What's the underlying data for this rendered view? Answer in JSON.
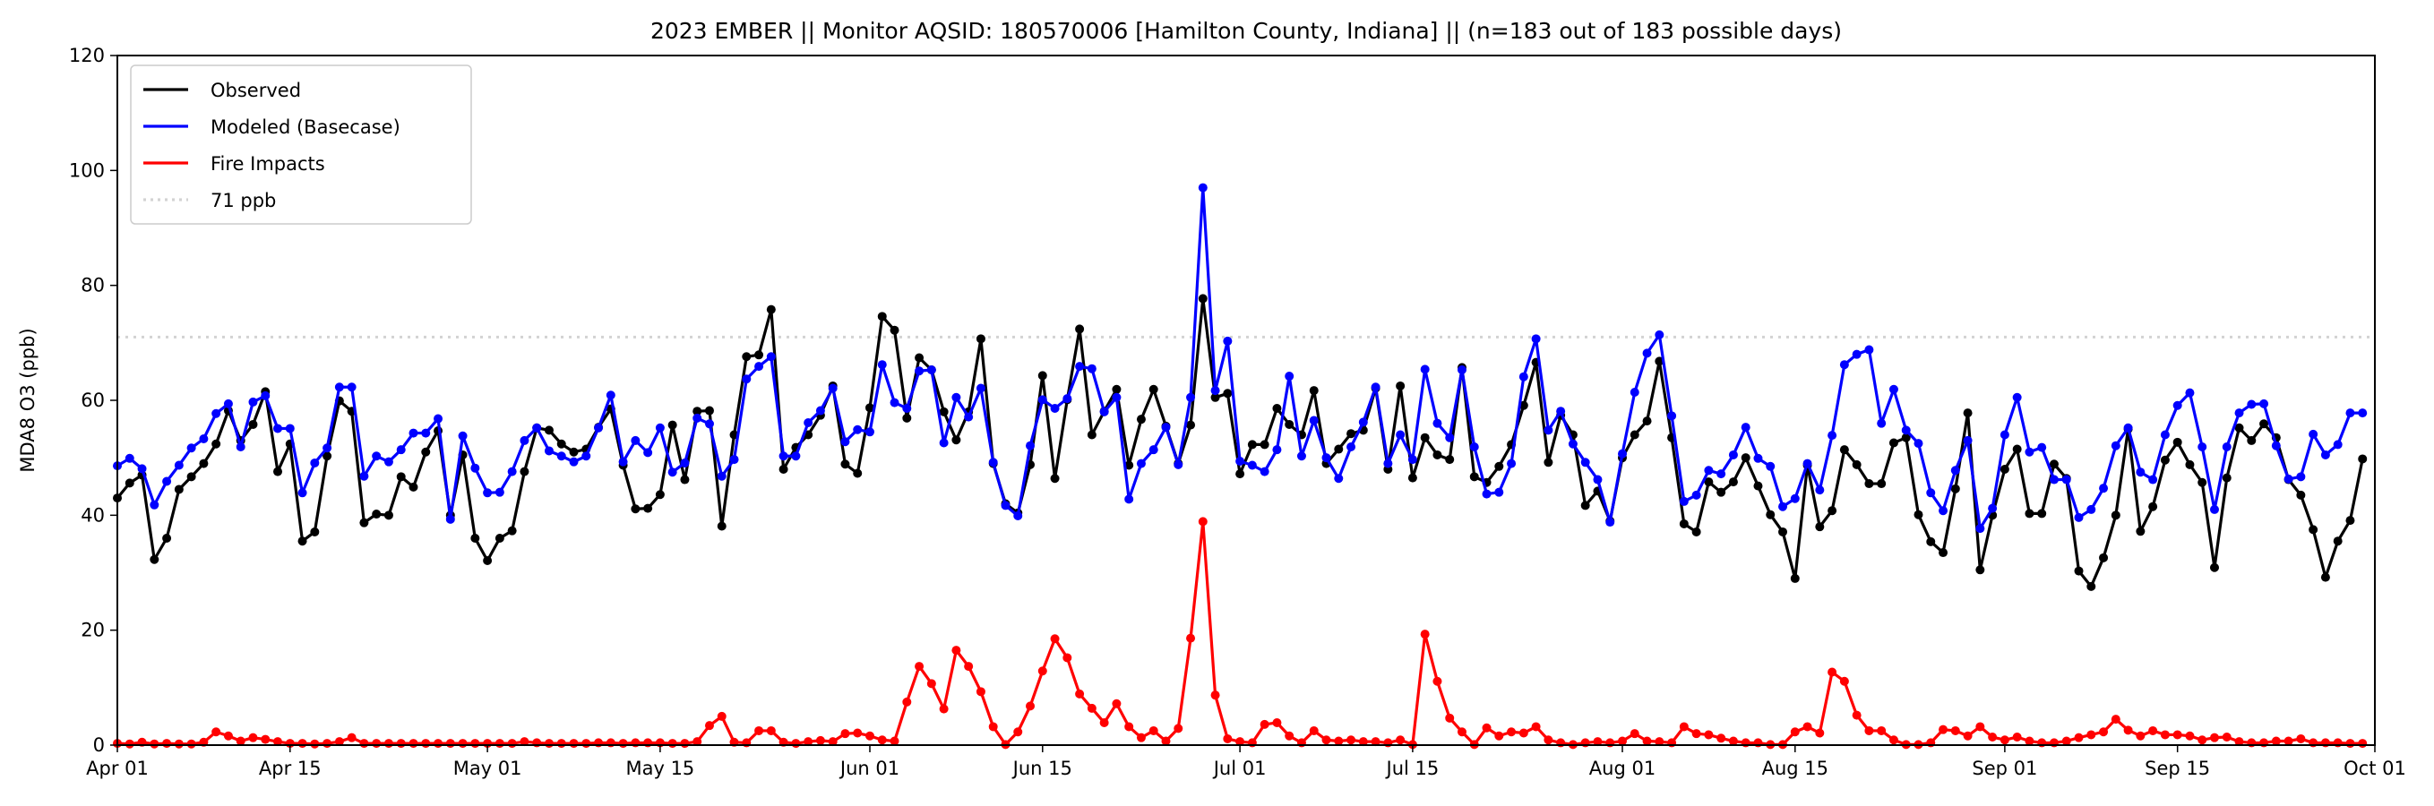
{
  "chart_data": {
    "type": "line",
    "title": "2023 EMBER || Monitor AQSID: 180570006 [Hamilton County, Indiana] || (n=183 out of 183 possible days)",
    "xlabel": "",
    "ylabel": "MDA8 O3 (ppb)",
    "x_start": "2023-04-01",
    "xlim_days": [
      0,
      183
    ],
    "ylim": [
      0,
      120
    ],
    "yticks": [
      0,
      20,
      40,
      60,
      80,
      100,
      120
    ],
    "xticks": [
      {
        "day": 0,
        "label": "Apr 01"
      },
      {
        "day": 14,
        "label": "Apr 15"
      },
      {
        "day": 30,
        "label": "May 01"
      },
      {
        "day": 44,
        "label": "May 15"
      },
      {
        "day": 61,
        "label": "Jun 01"
      },
      {
        "day": 75,
        "label": "Jun 15"
      },
      {
        "day": 91,
        "label": "Jul 01"
      },
      {
        "day": 105,
        "label": "Jul 15"
      },
      {
        "day": 122,
        "label": "Aug 01"
      },
      {
        "day": 136,
        "label": "Aug 15"
      },
      {
        "day": 153,
        "label": "Sep 01"
      },
      {
        "day": 167,
        "label": "Sep 15"
      },
      {
        "day": 183,
        "label": "Oct 01"
      }
    ],
    "grid": false,
    "legend_position": "top-left",
    "reference_line": {
      "value": 71,
      "label": "71 ppb",
      "color": "#d3d3d3"
    },
    "series": [
      {
        "name": "Observed",
        "color": "#000000",
        "values": [
          43,
          45.6,
          47,
          32.3,
          36,
          44.5,
          46.7,
          49,
          52.4,
          58.2,
          53,
          55.8,
          61.5,
          47.6,
          52.4,
          35.5,
          37.1,
          50.3,
          59.9,
          58.1,
          38.7,
          40.2,
          40,
          46.7,
          44.9,
          51,
          54.7,
          40,
          50.5,
          36,
          32.1,
          36,
          37.3,
          47.6,
          55.2,
          54.8,
          52.4,
          51,
          51.5,
          55.3,
          58.5,
          48.7,
          41.1,
          41.2,
          43.6,
          55.7,
          46.2,
          58.1,
          58.2,
          38.1,
          54,
          67.6,
          67.9,
          75.8,
          48,
          51.8,
          54,
          57.4,
          62.5,
          48.9,
          47.3,
          58.7,
          74.6,
          72.2,
          56.9,
          67.4,
          65.3,
          58,
          53.1,
          58,
          70.7,
          49,
          42,
          40.4,
          48.8,
          64.3,
          46.4,
          60.1,
          72.4,
          54,
          58.1,
          61.9,
          48.7,
          56.7,
          61.9,
          55.5,
          49,
          55.7,
          77.7,
          60.5,
          61.2,
          47.2,
          52.3,
          52.3,
          58.6,
          55.8,
          54,
          61.7,
          49,
          51.5,
          54.2,
          54.8,
          62.1,
          48,
          62.5,
          46.5,
          53.5,
          50.5,
          49.7,
          65.7,
          46.7,
          45.7,
          48.5,
          52.3,
          59.1,
          66.6,
          49.2,
          57.4,
          54,
          41.7,
          44.2,
          39,
          50,
          54,
          56.4,
          66.8,
          53.5,
          38.5,
          37.1,
          45.8,
          44,
          45.8,
          50,
          45.1,
          40.1,
          37.1,
          29,
          48.7,
          38,
          40.8,
          51.4,
          48.8,
          45.5,
          45.5,
          52.6,
          53.5,
          40.1,
          35.4,
          33.5,
          44.6,
          57.8,
          30.5,
          40,
          48,
          51.5,
          40.3,
          40.3,
          48.9,
          46.4,
          30.3,
          27.6,
          32.6,
          40,
          55,
          37.2,
          41.5,
          49.6,
          52.7,
          48.8,
          45.7,
          30.9,
          46.5,
          55.2,
          53,
          55.9,
          53.5,
          46.2,
          43.5,
          37.5,
          29.2,
          35.5,
          39.1,
          49.8
        ]
      },
      {
        "name": "Modeled (Basecase)",
        "color": "#0000ff",
        "values": [
          48.6,
          49.9,
          48.1,
          41.8,
          45.9,
          48.7,
          51.7,
          53.3,
          57.7,
          59.4,
          51.9,
          59.7,
          60.8,
          55.1,
          55.1,
          43.9,
          49.1,
          51.7,
          62.3,
          62.3,
          46.8,
          50.3,
          49.3,
          51.4,
          54.3,
          54.3,
          56.8,
          39.3,
          53.8,
          48.2,
          43.9,
          44,
          47.6,
          53,
          55.2,
          51.2,
          50.3,
          49.3,
          50.3,
          55.2,
          60.9,
          49.3,
          53,
          50.9,
          55.2,
          47.5,
          49.1,
          56.9,
          55.9,
          46.8,
          49.7,
          63.7,
          65.9,
          67.6,
          50.3,
          50.3,
          56.1,
          58.2,
          62.1,
          52.8,
          54.9,
          54.5,
          66.2,
          59.6,
          58.6,
          65.1,
          65.3,
          52.6,
          60.5,
          57.1,
          62.1,
          49.2,
          41.7,
          39.9,
          52.1,
          60.1,
          58.6,
          60.3,
          65.9,
          65.5,
          58,
          60.5,
          42.8,
          49,
          51.4,
          55.3,
          48.8,
          60.5,
          97,
          61.7,
          70.3,
          49.4,
          48.7,
          47.6,
          51.4,
          64.2,
          50.3,
          56.5,
          50,
          46.4,
          51.9,
          56.2,
          62.3,
          49,
          54,
          49.7,
          65.4,
          56,
          53.5,
          65.3,
          51.9,
          43.7,
          44,
          49,
          64.1,
          70.7,
          54.8,
          58.1,
          52.4,
          49.2,
          46.2,
          38.8,
          50.7,
          61.4,
          68.2,
          71.4,
          57.3,
          42.4,
          43.5,
          47.8,
          47.2,
          50.5,
          55.3,
          49.9,
          48.5,
          41.5,
          42.9,
          49,
          44.4,
          53.9,
          66.2,
          68,
          68.8,
          56,
          61.9,
          54.8,
          52.5,
          43.9,
          40.8,
          47.8,
          53,
          37.7,
          41.2,
          54,
          60.5,
          51,
          51.8,
          46.2,
          46.2,
          39.6,
          41,
          44.7,
          52.1,
          55.2,
          47.5,
          46.2,
          54,
          59.1,
          61.3,
          51.9,
          41,
          51.9,
          57.8,
          59.3,
          59.4,
          52.1,
          46.3,
          46.7,
          54.1,
          50.5,
          52.3,
          57.8,
          57.8
        ]
      },
      {
        "name": "Fire Impacts",
        "color": "#ff0000",
        "values": [
          0.3,
          0.2,
          0.5,
          0.2,
          0.3,
          0.2,
          0.2,
          0.5,
          2.3,
          1.6,
          0.7,
          1.3,
          1.0,
          0.6,
          0.3,
          0.3,
          0.2,
          0.3,
          0.6,
          1.3,
          0.3,
          0.3,
          0.3,
          0.3,
          0.3,
          0.3,
          0.3,
          0.3,
          0.3,
          0.3,
          0.3,
          0.3,
          0.3,
          0.6,
          0.4,
          0.3,
          0.3,
          0.3,
          0.3,
          0.4,
          0.4,
          0.3,
          0.4,
          0.4,
          0.4,
          0.3,
          0.3,
          0.6,
          3.4,
          5.0,
          0.5,
          0.4,
          2.5,
          2.5,
          0.5,
          0.3,
          0.6,
          0.8,
          0.6,
          2.0,
          2.1,
          1.6,
          0.9,
          0.7,
          7.5,
          13.7,
          10.7,
          6.3,
          16.5,
          13.7,
          9.3,
          3.2,
          0.1,
          2.3,
          6.8,
          12.9,
          18.5,
          15.2,
          8.9,
          6.4,
          3.9,
          7.2,
          3.2,
          1.3,
          2.5,
          0.7,
          2.9,
          18.6,
          38.9,
          8.7,
          1.1,
          0.6,
          0.4,
          3.6,
          3.9,
          1.6,
          0.4,
          2.5,
          0.9,
          0.7,
          0.9,
          0.6,
          0.6,
          0.4,
          0.9,
          0.1,
          19.3,
          11.1,
          4.7,
          2.3,
          0.1,
          3,
          1.6,
          2.3,
          2.1,
          3.2,
          0.9,
          0.4,
          0.1,
          0.4,
          0.6,
          0.4,
          0.7,
          2.0,
          0.7,
          0.6,
          0.4,
          3.2,
          2.0,
          1.8,
          1.2,
          0.7,
          0.4,
          0.4,
          0.1,
          0.1,
          2.3,
          3.2,
          2.1,
          12.7,
          11.1,
          5.2,
          2.5,
          2.5,
          0.9,
          0.1,
          0.1,
          0.4,
          2.7,
          2.5,
          1.6,
          3.2,
          1.4,
          0.9,
          1.4,
          0.7,
          0.4,
          0.4,
          0.7,
          1.3,
          1.8,
          2.3,
          4.5,
          2.6,
          1.6,
          2.5,
          1.8,
          1.8,
          1.6,
          0.9,
          1.3,
          1.4,
          0.6,
          0.4,
          0.4,
          0.7,
          0.7,
          1.1,
          0.4,
          0.4,
          0.4,
          0.3,
          0.3
        ]
      }
    ]
  }
}
